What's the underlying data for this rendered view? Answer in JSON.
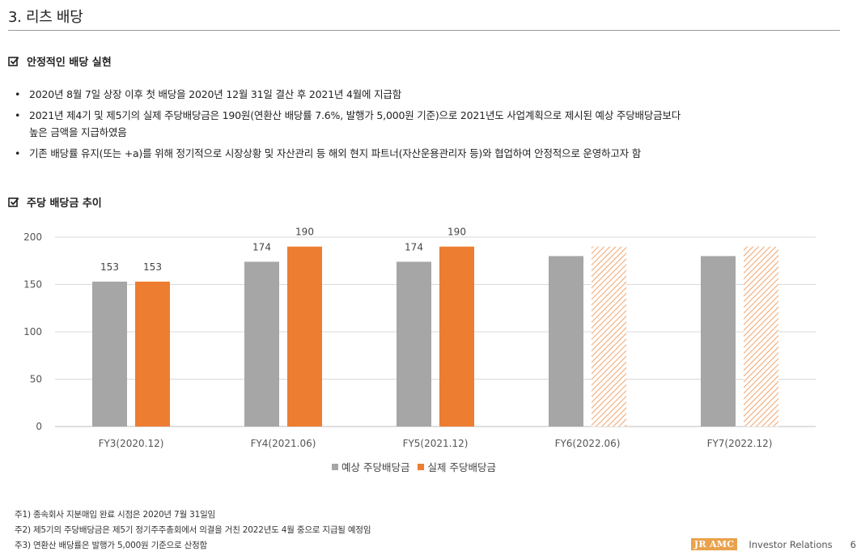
{
  "header": {
    "title": "3. 리츠 배당"
  },
  "section1": {
    "heading": "안정적인 배당 실현",
    "bullets": [
      {
        "lines": [
          "2020년 8월 7일 상장 이후 첫 배당을 2020년 12월 31일 결산 후 2021년 4월에 지급함"
        ]
      },
      {
        "lines": [
          "2021년 제4기 및 제5기의 실제 주당배당금은 190원(연환산 배당률 7.6%, 발행가 5,000원 기준)으로 2021년도 사업계획으로 제시된 예상 주당배당금보다",
          "높은 금액을 지급하였음"
        ]
      },
      {
        "lines": [
          "기존 배당률 유지(또는 +a)를 위해 정기적으로 시장상황 및 자산관리 등 해외 현지 파트너(자산운용관리자 등)와 협업하여 안정적으로 운영하고자 함"
        ]
      }
    ]
  },
  "section2": {
    "heading": "주당 배당금 추이"
  },
  "chart_data": {
    "type": "bar",
    "categories": [
      "FY3(2020.12)",
      "FY4(2021.06)",
      "FY5(2021.12)",
      "FY6(2022.06)",
      "FY7(2022.12)"
    ],
    "series": [
      {
        "name": "예상 주당배당금",
        "values": [
          153,
          174,
          174,
          180,
          180
        ],
        "labels": [
          "153",
          "174",
          "174",
          "",
          ""
        ],
        "color": "#a6a6a6"
      },
      {
        "name": "실제 주당배당금",
        "values": [
          153,
          190,
          190,
          190,
          190
        ],
        "labels": [
          "153",
          "190",
          "190",
          "",
          ""
        ],
        "color": "#ed7d31",
        "hatched": [
          false,
          false,
          false,
          true,
          true
        ]
      }
    ],
    "yticks": [
      0,
      50,
      100,
      150,
      200
    ],
    "ylim": [
      0,
      200
    ],
    "grid": true,
    "legend": "bottom"
  },
  "notes": [
    "주1) 종속회사 지분매입 완료 시점은 2020년 7월 31일임",
    "주2) 제5기의 주당배당금은 제5기 정기주주총회에서 의결을 거친 2022년도 4월 중으로 지급될 예정임",
    "주3) 연환산 배당률은 발행가 5,000원 기준으로 산정함"
  ],
  "footer": {
    "logo": "JR AMC",
    "text": "Investor Relations",
    "page": "6"
  }
}
